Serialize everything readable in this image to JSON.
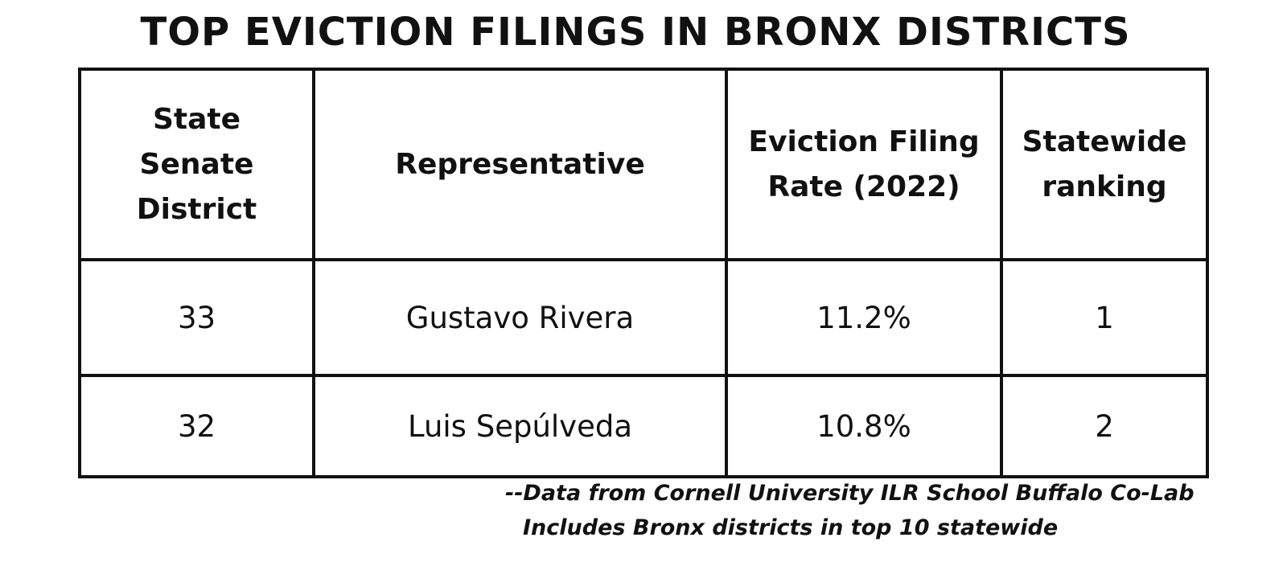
{
  "title": "TOP EVICTION FILINGS IN BRONX DISTRICTS",
  "table": {
    "header": [
      "State Senate District",
      "Representative",
      "Eviction Filing Rate (2022)",
      "Statewide ranking"
    ],
    "rows": [
      [
        "33",
        "Gustavo Rivera",
        "11.2%",
        "1"
      ],
      [
        "32",
        "Luis Sepúlveda",
        "10.8%",
        "2"
      ]
    ]
  },
  "footnote": [
    "--Data from Cornell University ILR School Buffalo Co-Lab",
    "Includes Bronx districts in top 10 statewide"
  ]
}
